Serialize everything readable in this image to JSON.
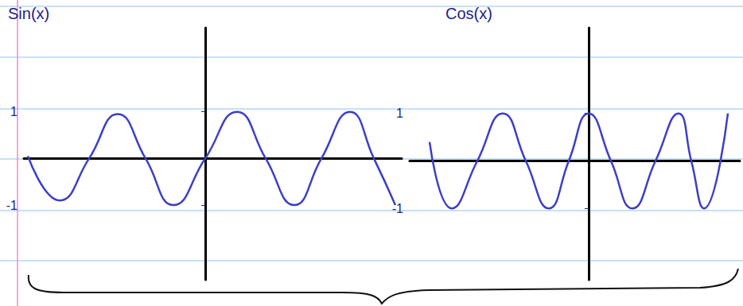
{
  "chart_data": [
    {
      "type": "line",
      "title": "Sin(x)",
      "x": [
        -11.15,
        -9.15,
        -7.3,
        -5.5,
        -3.75,
        -2,
        0,
        2,
        3.8,
        5.6,
        7.3,
        9.1,
        10.6,
        11.95
      ],
      "values": [
        0.05,
        -0.9,
        0,
        0.95,
        0,
        -1,
        0,
        1,
        0,
        -1,
        0,
        1,
        0,
        -1
      ],
      "color": "#3b3fc8",
      "xlim": [
        -11.4,
        12.35
      ],
      "ylim": [
        -2.6,
        2.8
      ],
      "yticks": [
        -1,
        1
      ],
      "grid": false,
      "tick_labels": "y"
    },
    {
      "type": "line",
      "title": "Cos(x)",
      "x": [
        -10,
        -8.6,
        -7,
        -5.4,
        -3.95,
        -2.5,
        -1.25,
        0,
        1.4,
        2.75,
        4.2,
        5.65,
        6.45,
        7.25,
        8.75
      ],
      "values": [
        0.4,
        -1,
        0,
        1,
        0,
        -1,
        0,
        1,
        0,
        -1,
        0,
        1,
        0,
        -1,
        1
      ],
      "color": "#3b3fc8",
      "xlim": [
        -11.25,
        9.5
      ],
      "ylim": [
        -2.5,
        2.8
      ],
      "yticks": [
        -1,
        1
      ],
      "grid": false,
      "tick_labels": "y"
    }
  ]
}
